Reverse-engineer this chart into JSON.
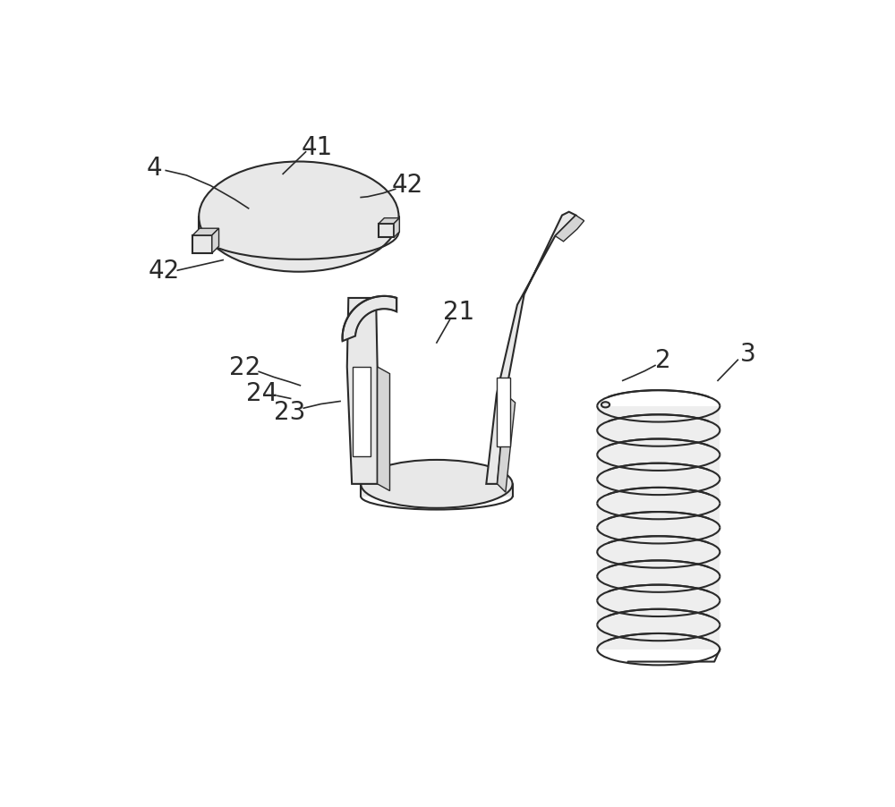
{
  "bg_color": "#ffffff",
  "lc": "#2a2a2a",
  "lfl": "#e8e8e8",
  "lfm": "#d5d5d5",
  "lfw": "#ffffff",
  "lw": 1.5,
  "lwt": 1.0,
  "lw_lbl": 1.2,
  "fs": 20,
  "figsize": [
    10.0,
    9.03
  ],
  "dpi": 100
}
